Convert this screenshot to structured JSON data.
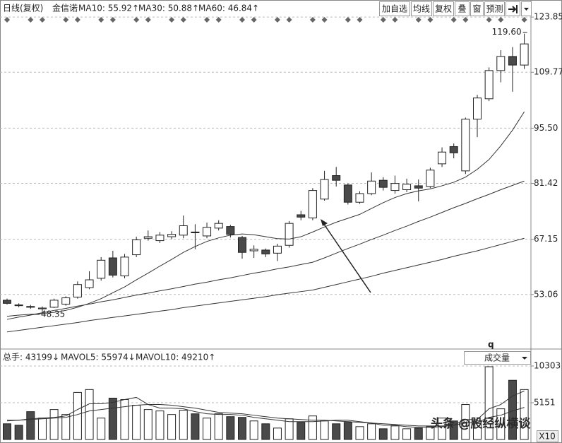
{
  "header": {
    "period": "日线(复权)",
    "stock": "金信诺",
    "indicators": [
      "MA10: 55.92↑",
      "MA30: 50.88↑",
      "MA60: 46.84↑"
    ],
    "buttons": [
      "加自选",
      "均线",
      "复权",
      "叠",
      "窗",
      "预测"
    ]
  },
  "volume_header": {
    "total": "总手: 43199↓",
    "mavol5": "MAVOL5: 55974↓",
    "mavol10": "MAVOL10: 49210↑",
    "selector": "成交量"
  },
  "marker": "q",
  "zoom": "X10",
  "watermark": "头条 @股经纵横谈",
  "chart_data": [
    {
      "type": "candlestick",
      "open": [
        51.6,
        50.4,
        50.0,
        49.4,
        49.8,
        50.6,
        52.4,
        54.8,
        57.2,
        62.4,
        57.8,
        63.2,
        67.4,
        66.8,
        67.8,
        68.2,
        69.0,
        68.0,
        70.0,
        70.4,
        67.6,
        64.2,
        64.4,
        63.6,
        65.6,
        73.4,
        72.6,
        77.4,
        83.4,
        81.0,
        76.6,
        78.8,
        82.2,
        79.6,
        79.8,
        80.8,
        80.6,
        86.4,
        90.8,
        84.6,
        97.8,
        103.0,
        110.2,
        113.8,
        111.6
      ],
      "close": [
        50.8,
        50.2,
        49.8,
        49.6,
        51.6,
        52.2,
        55.6,
        56.8,
        61.8,
        58.0,
        62.6,
        67.0,
        67.8,
        68.2,
        68.4,
        70.6,
        68.8,
        70.2,
        71.2,
        68.4,
        63.8,
        64.6,
        63.4,
        65.4,
        71.2,
        72.8,
        79.6,
        82.4,
        82.2,
        76.6,
        78.8,
        82.0,
        80.4,
        81.4,
        81.2,
        80.2,
        84.8,
        89.4,
        89.2,
        97.8,
        103.2,
        110.2,
        113.8,
        111.6,
        117.0
      ],
      "high": [
        52.0,
        50.8,
        50.4,
        50.0,
        52.0,
        52.6,
        56.4,
        59.0,
        62.6,
        64.2,
        63.4,
        67.8,
        69.4,
        69.0,
        69.2,
        73.2,
        71.0,
        71.4,
        72.0,
        70.8,
        68.0,
        65.6,
        64.8,
        66.0,
        71.8,
        74.4,
        80.2,
        84.6,
        85.6,
        81.4,
        79.4,
        84.2,
        83.0,
        83.4,
        82.6,
        82.4,
        85.4,
        90.6,
        91.6,
        98.2,
        104.0,
        111.0,
        115.4,
        116.2,
        119.6
      ],
      "low": [
        50.5,
        49.8,
        49.4,
        48.35,
        49.6,
        50.2,
        52.0,
        54.4,
        56.6,
        57.4,
        57.2,
        62.6,
        66.8,
        66.2,
        67.2,
        67.4,
        64.6,
        67.4,
        69.4,
        67.6,
        62.2,
        62.4,
        62.6,
        61.6,
        65.0,
        72.0,
        72.0,
        77.0,
        80.6,
        76.0,
        76.2,
        78.4,
        79.6,
        78.8,
        79.2,
        76.8,
        80.2,
        85.6,
        87.8,
        83.8,
        93.2,
        102.4,
        107.2,
        104.8,
        110.6
      ],
      "up_color": "#ffffff",
      "down_color": "#4a4a4a",
      "edge_color": "#222222",
      "max_label": "119.60",
      "min_label": "48.35",
      "series": [
        {
          "color": "#333333",
          "values": [
            47.5,
            47.8,
            48.0,
            48.2,
            48.5,
            49.0,
            49.8,
            50.8,
            52.0,
            53.5,
            55.0,
            56.8,
            58.5,
            60.3,
            62.0,
            63.8,
            65.3,
            66.6,
            67.5,
            68.2,
            68.5,
            68.3,
            67.8,
            67.3,
            67.2,
            67.8,
            69.0,
            70.3,
            71.5,
            72.5,
            73.5,
            75.0,
            76.5,
            77.8,
            78.8,
            79.5,
            80.0,
            80.8,
            81.7,
            83.0,
            85.0,
            87.5,
            91.0,
            95.0,
            99.7
          ]
        },
        {
          "color": "#333333",
          "values": [
            46.7,
            47.3,
            47.8,
            48.4,
            49.0,
            49.5,
            50.1,
            50.6,
            51.2,
            51.7,
            52.3,
            52.9,
            53.4,
            54.0,
            54.5,
            55.1,
            55.7,
            56.2,
            56.8,
            57.3,
            57.9,
            58.5,
            59.0,
            59.6,
            60.1,
            60.7,
            61.3,
            62.4,
            63.6,
            64.8,
            65.9,
            67.1,
            68.2,
            69.4,
            70.5,
            71.7,
            72.8,
            74.0,
            75.2,
            76.3,
            77.5,
            78.6,
            79.8,
            80.9,
            82.0
          ]
        },
        {
          "color": "#333333",
          "values": [
            43.5,
            43.9,
            44.3,
            44.7,
            45.1,
            45.5,
            45.9,
            46.4,
            46.8,
            47.2,
            47.6,
            48.0,
            48.4,
            48.8,
            49.2,
            49.7,
            50.1,
            50.5,
            50.9,
            51.3,
            51.7,
            52.1,
            52.5,
            53.0,
            53.4,
            53.8,
            54.2,
            54.9,
            55.6,
            56.3,
            57.0,
            57.7,
            58.5,
            59.2,
            59.9,
            60.6,
            61.3,
            62.0,
            62.8,
            63.5,
            64.2,
            65.0,
            65.8,
            66.6,
            67.4
          ]
        }
      ],
      "ylim": [
        39.5,
        125.5
      ],
      "yticks": [
        123.85,
        109.77,
        {
          "value": 95.5,
          "label": "95.50"
        },
        81.42,
        67.15,
        53.06
      ],
      "grid": true
    },
    {
      "type": "bar",
      "values": [
        2200,
        2000,
        3900,
        3000,
        4200,
        3500,
        6600,
        7000,
        3000,
        5800,
        5600,
        4800,
        4200,
        4000,
        3500,
        4100,
        3600,
        3000,
        3600,
        3200,
        3100,
        2600,
        2200,
        1600,
        2900,
        2400,
        3300,
        2600,
        2200,
        2400,
        1800,
        2200,
        1500,
        1900,
        1500,
        1600,
        1800,
        3000,
        2600,
        4900,
        2600,
        10200,
        4300,
        8300,
        7000
      ],
      "series": [
        {
          "color": "#333333",
          "values": [
            2600,
            2700,
            2900,
            3000,
            3100,
            3300,
            4200,
            5000,
            5000,
            5200,
            5600,
            5900,
            4900,
            4400,
            4400,
            4300,
            3900,
            3600,
            3500,
            3500,
            3400,
            3100,
            2900,
            2700,
            2500,
            2500,
            2500,
            2600,
            2700,
            2700,
            2500,
            2300,
            2000,
            2000,
            1800,
            1700,
            1700,
            1800,
            2000,
            2800,
            2800,
            4300,
            4900,
            6100,
            6800
          ]
        },
        {
          "color": "#333333",
          "values": [
            2700,
            2700,
            2800,
            2900,
            3000,
            3100,
            3500,
            4000,
            4200,
            4400,
            4600,
            4800,
            4900,
            4900,
            4800,
            4600,
            4400,
            4100,
            3800,
            3700,
            3600,
            3400,
            3200,
            3000,
            2900,
            2800,
            2700,
            2700,
            2600,
            2500,
            2400,
            2300,
            2200,
            2100,
            2000,
            1900,
            1900,
            1900,
            2000,
            2300,
            2400,
            3100,
            3400,
            4000,
            4500
          ]
        }
      ],
      "ylim": [
        0,
        10900
      ],
      "yticks": [
        10303,
        5151
      ],
      "grid": true
    }
  ]
}
